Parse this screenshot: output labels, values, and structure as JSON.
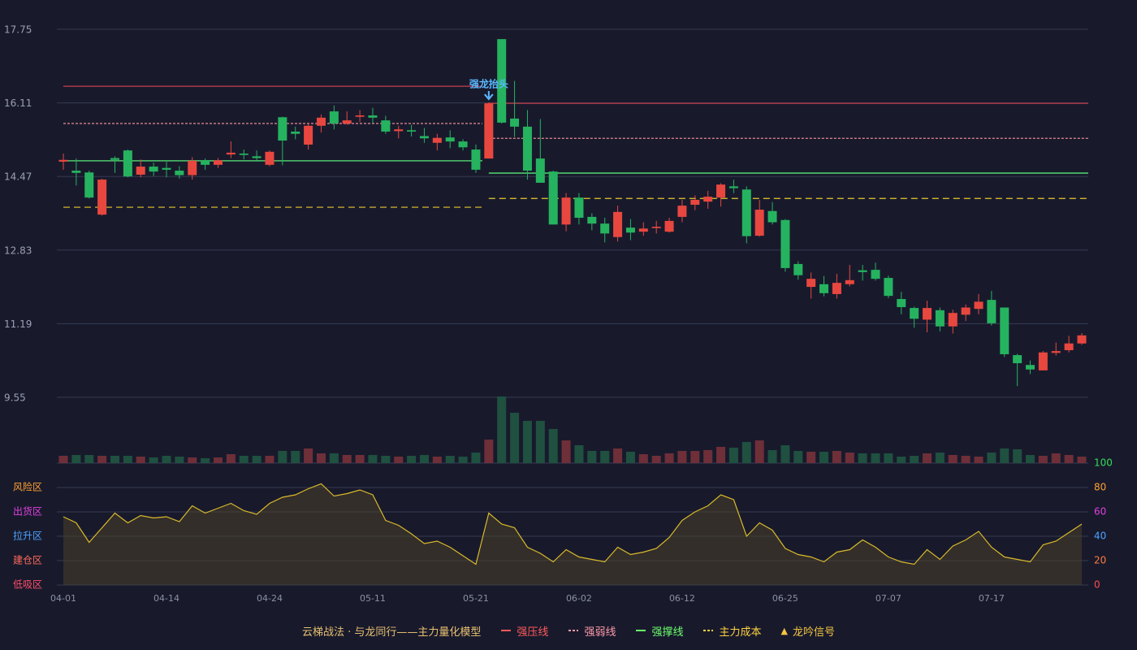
{
  "chart_data": [
    {
      "type": "candlestick",
      "title": "云梯战法 · 与龙同行——主力量化模型",
      "categories": [
        "04-01",
        null,
        null,
        null,
        null,
        null,
        null,
        null,
        "04-14",
        null,
        null,
        null,
        null,
        null,
        null,
        null,
        "04-24",
        null,
        null,
        null,
        null,
        null,
        null,
        null,
        "05-11",
        null,
        null,
        null,
        null,
        null,
        null,
        null,
        "05-21",
        null,
        null,
        null,
        null,
        null,
        null,
        null,
        "06-02",
        null,
        null,
        null,
        null,
        null,
        null,
        null,
        "06-12",
        null,
        null,
        null,
        null,
        null,
        null,
        null,
        "06-25",
        null,
        null,
        null,
        null,
        null,
        null,
        null,
        "07-07",
        null,
        null,
        null,
        null,
        null,
        null,
        null,
        "07-17",
        null,
        null,
        null,
        null,
        null,
        null,
        null
      ],
      "open": [
        14.8,
        14.6,
        14.56,
        13.62,
        14.88,
        15.05,
        14.51,
        14.69,
        14.66,
        14.6,
        14.5,
        14.83,
        14.73,
        14.96,
        14.98,
        14.92,
        14.73,
        15.79,
        15.47,
        15.18,
        15.6,
        15.92,
        15.65,
        15.8,
        15.83,
        15.72,
        15.48,
        15.5,
        15.37,
        15.22,
        15.34,
        15.25,
        15.07,
        14.87,
        17.53,
        15.76,
        15.58,
        14.87,
        14.58,
        13.4,
        14.0,
        13.57,
        13.42,
        13.12,
        13.33,
        13.24,
        13.32,
        13.24,
        13.57,
        13.84,
        13.91,
        14.0,
        14.25,
        14.18,
        13.15,
        13.7,
        13.5,
        12.52,
        12.01,
        12.07,
        11.85,
        12.07,
        12.38,
        12.39,
        12.21,
        11.74,
        11.54,
        11.28,
        11.49,
        11.13,
        11.39,
        11.52,
        11.72,
        11.55,
        10.49,
        10.27,
        10.15,
        10.54,
        10.6,
        10.75
      ],
      "high": [
        14.98,
        14.87,
        14.6,
        14.42,
        14.92,
        15.07,
        14.85,
        14.78,
        14.8,
        14.7,
        14.9,
        14.87,
        14.88,
        15.25,
        15.07,
        15.05,
        15.05,
        15.8,
        15.58,
        15.65,
        15.85,
        16.05,
        15.92,
        15.95,
        16.0,
        15.82,
        15.6,
        15.62,
        15.55,
        15.42,
        15.5,
        15.3,
        15.18,
        16.12,
        17.53,
        16.6,
        15.95,
        15.75,
        14.6,
        14.1,
        14.1,
        13.65,
        13.55,
        13.82,
        13.52,
        13.45,
        13.48,
        13.55,
        13.95,
        14.05,
        14.15,
        14.32,
        14.4,
        14.25,
        13.95,
        13.9,
        13.52,
        12.58,
        12.33,
        12.25,
        12.3,
        12.5,
        12.5,
        12.55,
        12.26,
        11.9,
        11.57,
        11.7,
        11.55,
        11.5,
        11.62,
        11.85,
        11.92,
        11.55,
        10.52,
        10.37,
        10.58,
        10.77,
        10.92,
        10.98
      ],
      "low": [
        14.62,
        14.27,
        13.98,
        13.6,
        14.55,
        14.45,
        14.45,
        14.48,
        14.45,
        14.42,
        14.4,
        14.62,
        14.66,
        14.88,
        14.85,
        14.8,
        14.7,
        14.72,
        15.3,
        15.07,
        15.45,
        15.52,
        15.62,
        15.68,
        15.65,
        15.42,
        15.32,
        15.36,
        15.22,
        15.05,
        15.1,
        15.05,
        14.55,
        14.87,
        15.65,
        15.35,
        14.4,
        14.33,
        13.4,
        13.25,
        13.4,
        13.27,
        13.0,
        13.02,
        13.05,
        13.15,
        13.2,
        13.22,
        13.45,
        13.72,
        13.75,
        13.8,
        14.1,
        12.98,
        13.13,
        13.4,
        12.35,
        12.17,
        11.75,
        11.8,
        11.75,
        12.02,
        12.15,
        12.15,
        11.76,
        11.4,
        11.1,
        11.0,
        11.02,
        10.97,
        11.25,
        11.4,
        11.15,
        10.45,
        9.8,
        10.07,
        10.15,
        10.48,
        10.55,
        10.72
      ],
      "close": [
        14.84,
        14.55,
        14.0,
        14.4,
        14.84,
        14.47,
        14.69,
        14.58,
        14.62,
        14.5,
        14.82,
        14.73,
        14.83,
        15.0,
        14.95,
        14.88,
        15.02,
        15.27,
        15.42,
        15.6,
        15.78,
        15.65,
        15.72,
        15.83,
        15.78,
        15.47,
        15.52,
        15.47,
        15.32,
        15.33,
        15.25,
        15.12,
        14.62,
        16.1,
        15.67,
        15.58,
        14.6,
        14.33,
        13.4,
        14.0,
        13.55,
        13.42,
        13.2,
        13.68,
        13.22,
        13.31,
        13.35,
        13.48,
        13.82,
        13.95,
        14.02,
        14.29,
        14.21,
        13.14,
        13.73,
        13.45,
        12.43,
        12.27,
        12.19,
        11.87,
        12.1,
        12.16,
        12.34,
        12.19,
        11.81,
        11.56,
        11.3,
        11.54,
        11.13,
        11.43,
        11.55,
        11.68,
        11.2,
        10.51,
        10.31,
        10.17,
        10.55,
        10.58,
        10.75,
        10.93
      ],
      "up_color": "#e8473f",
      "down_color": "#26b35f",
      "volume": {
        "values": [
          9,
          10,
          10,
          9,
          9,
          9,
          8,
          7,
          9,
          8,
          7,
          6,
          7,
          11,
          9,
          9,
          9,
          15,
          15,
          18,
          12,
          12,
          10,
          10,
          10,
          9,
          8,
          9,
          10,
          8,
          9,
          8,
          13,
          29,
          82,
          62,
          52,
          52,
          42,
          28,
          22,
          15,
          15,
          18,
          14,
          11,
          9,
          12,
          15,
          15,
          16,
          20,
          19,
          26,
          28,
          16,
          22,
          15,
          14,
          14,
          15,
          13,
          12,
          12,
          12,
          8,
          9,
          12,
          13,
          10,
          9,
          8,
          13,
          18,
          17,
          10,
          9,
          12,
          10,
          8
        ],
        "up_color": "#6e2f38",
        "down_color": "#1f5040"
      },
      "ylim": [
        9.55,
        17.75
      ],
      "yticks": [
        9.55,
        11.19,
        12.83,
        14.47,
        16.11,
        17.75
      ],
      "grid": true,
      "levels": [
        {
          "name": "强压线",
          "color": "#ff5a5a",
          "line_color": "#9e3644",
          "dashed": false,
          "segments": [
            {
              "from": 0,
              "to": 32,
              "value": 16.48
            },
            {
              "from": 33,
              "to": 79,
              "value": 16.1
            }
          ]
        },
        {
          "name": "强弱线",
          "color": "#ff9aa8",
          "line_color": "#e88a96",
          "dashed": true,
          "segments": [
            {
              "from": 0,
              "to": 32,
              "value": 15.65
            },
            {
              "from": 33,
              "to": 79,
              "value": 15.32
            }
          ]
        },
        {
          "name": "强撑线",
          "color": "#6dff6d",
          "line_color": "#4ec96b",
          "dashed": false,
          "segments": [
            {
              "from": 0,
              "to": 32,
              "value": 14.82
            },
            {
              "from": 33,
              "to": 79,
              "value": 14.545
            }
          ]
        },
        {
          "name": "主力成本",
          "color": "#ffd23f",
          "line_color": "#e8c72c",
          "dashed": true,
          "segments": [
            {
              "from": 0,
              "to": 32,
              "value": 13.785
            },
            {
              "from": 33,
              "to": 79,
              "value": 13.98
            }
          ]
        }
      ],
      "signal": {
        "name": "龙吟信号",
        "color": "#f5c542"
      },
      "annotations": [
        {
          "text": "强龙抬头",
          "index": 33,
          "color": "#5ab8ff"
        }
      ]
    },
    {
      "type": "line",
      "series": [
        {
          "color": "#d9b92a",
          "values": [
            56,
            51,
            35,
            47,
            59,
            51,
            57,
            55,
            56,
            52,
            65,
            59,
            63,
            67,
            61,
            58,
            67,
            72,
            74,
            79,
            83,
            73,
            75,
            78,
            74,
            53,
            49,
            42,
            34,
            36,
            31,
            24,
            17,
            59,
            50,
            47,
            31,
            26,
            19,
            29,
            23,
            21,
            19,
            31,
            25,
            27,
            30,
            39,
            53,
            60,
            65,
            74,
            70,
            40,
            51,
            45,
            30,
            25,
            23,
            19,
            27,
            29,
            37,
            31,
            23,
            19,
            17,
            29,
            21,
            32,
            37,
            44,
            31,
            23,
            21,
            19,
            33,
            36,
            43,
            50
          ]
        }
      ],
      "ylim": [
        0,
        100
      ],
      "yticks": [
        0,
        20,
        40,
        60,
        80,
        100
      ],
      "ytick_colors": [
        "#ff4d4d",
        "#ff7a3d",
        "#4da3ff",
        "#e040e0",
        "#ffa030",
        "#33dd55"
      ],
      "zones": [
        {
          "label": "低吸区",
          "value": 0,
          "color": "#ff4d6a"
        },
        {
          "label": "建仓区",
          "value": 20,
          "color": "#ff6a5a"
        },
        {
          "label": "拉升区",
          "value": 40,
          "color": "#4da3ff"
        },
        {
          "label": "出货区",
          "value": 60,
          "color": "#e040e0"
        },
        {
          "label": "风险区",
          "value": 80,
          "color": "#ffa030"
        }
      ]
    }
  ]
}
